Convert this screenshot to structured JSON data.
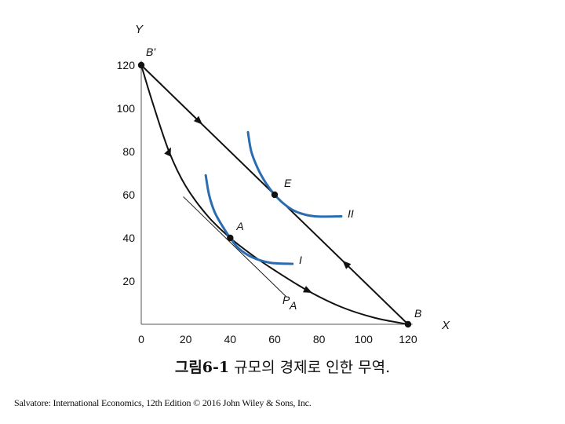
{
  "chart_data": {
    "type": "line",
    "xlabel": "X",
    "ylabel": "Y",
    "xlim": [
      0,
      120
    ],
    "ylim": [
      0,
      120
    ],
    "x_ticks": [
      "0",
      "20",
      "40",
      "60",
      "80",
      "100",
      "120"
    ],
    "y_ticks": [
      "20",
      "40",
      "60",
      "80",
      "100",
      "120"
    ],
    "grid": false,
    "series": [
      {
        "role": "production-frontier",
        "color": "#111111",
        "x": [
          0,
          5,
          12.5,
          20,
          30,
          40,
          50,
          60,
          75,
          90,
          105,
          120
        ],
        "y": [
          120,
          103,
          80,
          64,
          50,
          40,
          32,
          25,
          15.5,
          8,
          3,
          0
        ]
      },
      {
        "role": "trade-line",
        "color": "#111111",
        "x": [
          0,
          120
        ],
        "y": [
          120,
          0
        ]
      },
      {
        "role": "price-line",
        "label": "P_A",
        "color": "#111111",
        "x": [
          19,
          65
        ],
        "y": [
          59,
          13
        ]
      },
      {
        "role": "indifference-curve",
        "label": "I",
        "color": "#2b6cb0",
        "x": [
          29,
          30.5,
          33,
          36.5,
          40,
          44,
          50,
          58,
          68
        ],
        "y": [
          69,
          60,
          52,
          45.5,
          40,
          35,
          31,
          28.5,
          28
        ]
      },
      {
        "role": "indifference-curve",
        "label": "II",
        "color": "#2b6cb0",
        "x": [
          48,
          49.5,
          52.5,
          56,
          60,
          64.5,
          70,
          78,
          90
        ],
        "y": [
          89,
          80,
          72,
          65.5,
          60,
          55.5,
          52,
          50,
          50
        ]
      }
    ],
    "points": [
      {
        "label": "B'",
        "x": 0,
        "y": 120
      },
      {
        "label": "E",
        "x": 60,
        "y": 60
      },
      {
        "label": "A",
        "x": 40,
        "y": 40
      },
      {
        "label": "B",
        "x": 120,
        "y": 0
      }
    ],
    "curve_labels": {
      "P_A_main": "P",
      "P_A_sub": "A",
      "I": "I",
      "II": "II"
    }
  },
  "caption": {
    "figure_no": "그림6-1",
    "text": " 규모의 경제로 인한 무역."
  },
  "footer": "Salvatore: International Economics, 12th Edition © 2016 John Wiley & Sons, Inc."
}
